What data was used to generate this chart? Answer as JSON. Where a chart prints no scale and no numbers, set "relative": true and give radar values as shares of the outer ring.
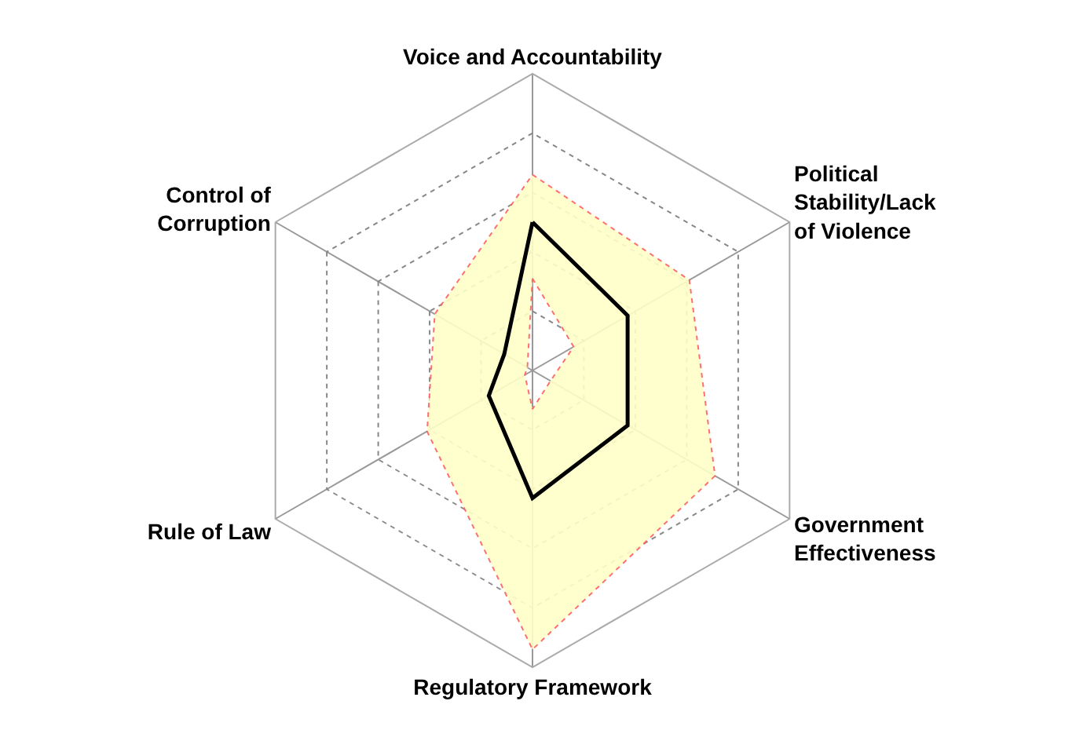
{
  "chart_data": {
    "type": "radar",
    "relative": true,
    "grid": true,
    "categories": [
      "Voice and Accountability",
      "Political Stability/Lack of Violence",
      "Government Effectiveness",
      "Regulatory Framework",
      "Rule of Law",
      "Control of Corruption"
    ],
    "series": [
      {
        "type": "area",
        "color": "#ffffc8",
        "values": [
          0.66,
          0.61,
          0.71,
          0.94,
          0.41,
          0.38
        ]
      },
      {
        "type": "area",
        "color": "#ffffc8",
        "values": [
          0.31,
          0.16,
          0.07,
          0.13,
          0.03,
          0.02
        ]
      },
      {
        "color": "#000000",
        "values": [
          0.5,
          0.37,
          0.37,
          0.43,
          0.17,
          0.11
        ]
      }
    ]
  }
}
